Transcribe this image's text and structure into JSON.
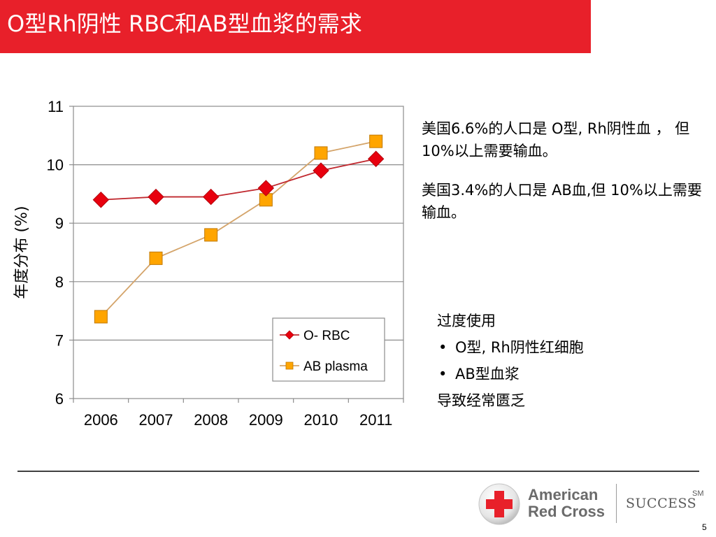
{
  "slide": {
    "title": "O型Rh阴性 RBC和AB型血浆的需求",
    "page_number": "5",
    "colors": {
      "title_bar": "#e8202a",
      "o_rbc": "#e8000e",
      "ab_plasma": "#ffa500",
      "ab_plasma_line": "#d4a46a"
    }
  },
  "description": {
    "p1": "美国6.6%的人口是 O型, Rh阴性血 ， 但10%以上需要输血。",
    "p2": "美国3.4%的人口是 AB血,但 10%以上需要输血。"
  },
  "notes": {
    "heading": "过度使用",
    "bullets": [
      "O型, Rh阴性红细胞",
      "AB型血浆"
    ],
    "conclusion": "导致经常匮乏"
  },
  "footer": {
    "brand_line1": "American",
    "brand_line2": "Red Cross",
    "success": "SUCCESS",
    "sm": "SM"
  },
  "chart_data": {
    "type": "line",
    "categories": [
      "2006",
      "2007",
      "2008",
      "2009",
      "2010",
      "2011"
    ],
    "series": [
      {
        "name": "O- RBC",
        "values": [
          9.4,
          9.45,
          9.45,
          9.6,
          9.9,
          10.1
        ],
        "color": "#e8000e",
        "line_color": "#c0282e",
        "marker": "diamond"
      },
      {
        "name": "AB plasma",
        "values": [
          7.4,
          8.4,
          8.8,
          9.4,
          10.2,
          10.4
        ],
        "color": "#ffa500",
        "line_color": "#d4a46a",
        "marker": "square"
      }
    ],
    "ylabel": "年度分布 (%)",
    "xlabel": "",
    "ylim": [
      6,
      11
    ],
    "yticks": [
      6,
      7,
      8,
      9,
      10,
      11
    ],
    "grid": true,
    "legend": "bottom-right"
  }
}
